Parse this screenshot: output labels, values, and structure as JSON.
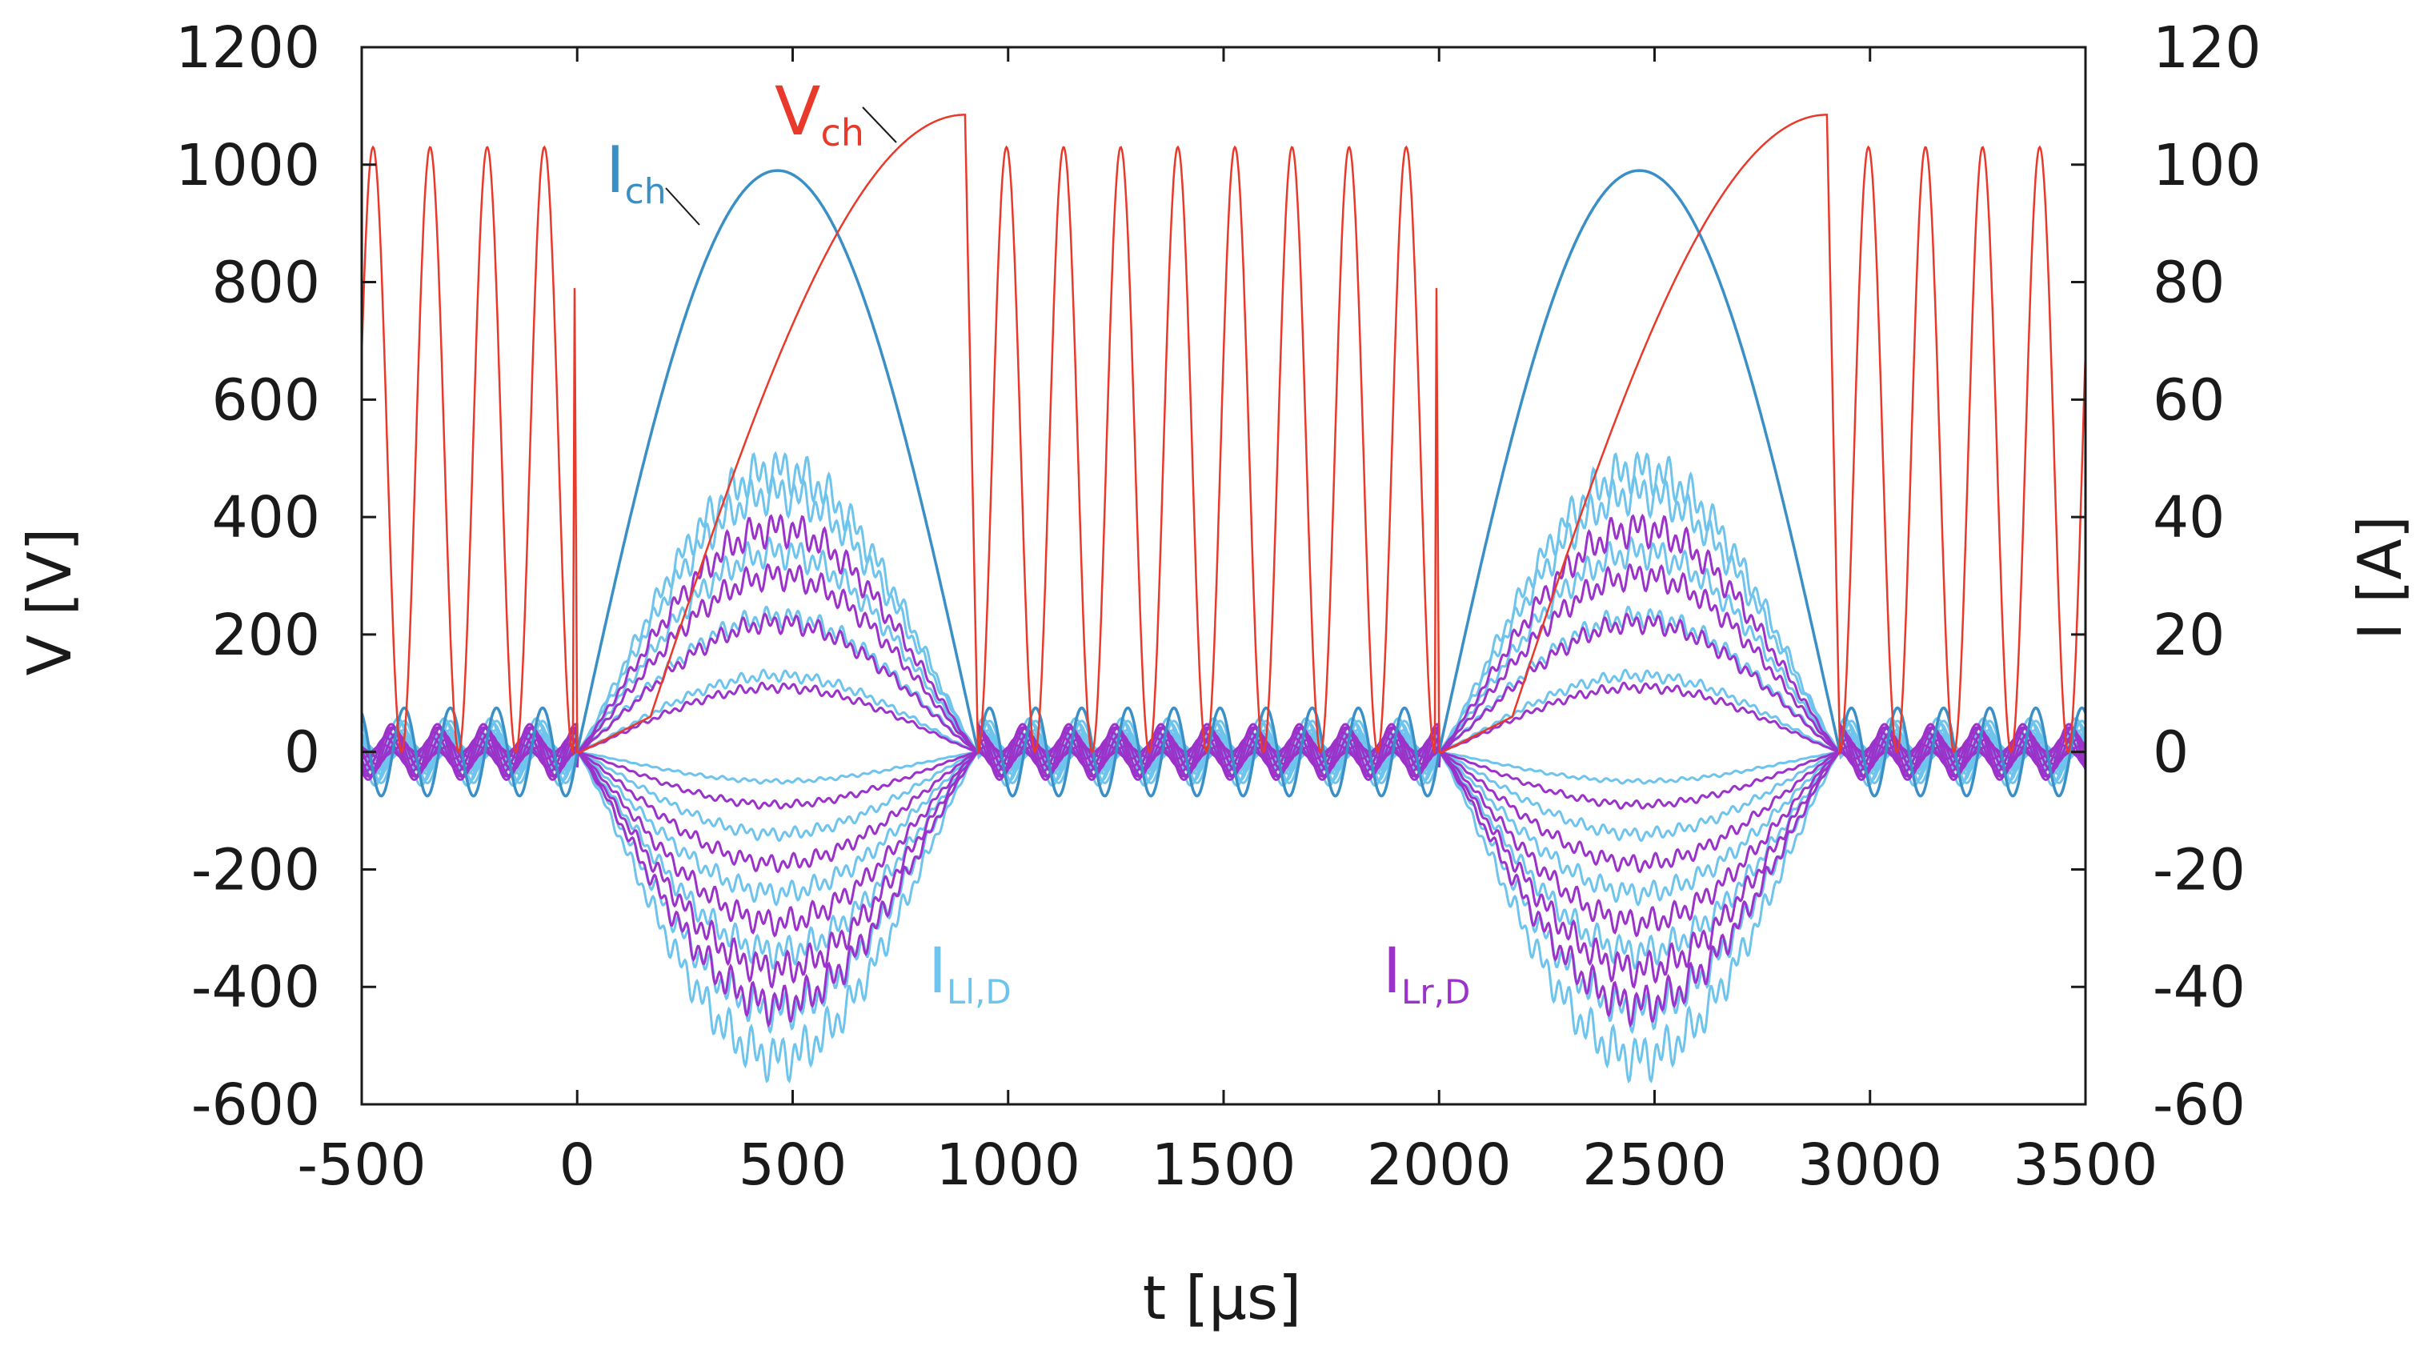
{
  "chart_data": {
    "type": "line",
    "xlabel": "t [µs]",
    "ylabel_left": "V [V]",
    "ylabel_right": "I [A]",
    "xlim": [
      -500,
      3500
    ],
    "ylim_left": [
      -600,
      1200
    ],
    "ylim_right": [
      -60,
      120
    ],
    "x_ticks": [
      -500,
      0,
      500,
      1000,
      1500,
      2000,
      2500,
      3000,
      3500
    ],
    "y_left_ticks": [
      -600,
      -400,
      -200,
      0,
      200,
      400,
      600,
      800,
      1000,
      1200
    ],
    "y_right_ticks": [
      -60,
      -40,
      -20,
      0,
      20,
      40,
      60,
      80,
      100,
      120
    ],
    "grid": false,
    "period_us": 2000,
    "series": [
      {
        "name": "V_ch",
        "label_main": "V",
        "label_sub": "ch",
        "axis": "left",
        "color": "#e8392b",
        "charge_pulse": {
          "start": 170,
          "end": 900,
          "peak": 1085
        },
        "idle_oscillation": {
          "amplitude": 1030,
          "cycles": 8,
          "start": 930,
          "end": 1990
        }
      },
      {
        "name": "I_ch",
        "label_main": "I",
        "label_sub": "ch",
        "axis": "right",
        "color": "#3a8fc6",
        "half_sine": {
          "start": 0,
          "end": 930,
          "peak": 99
        },
        "idle_ripple_amplitude": 7.5
      },
      {
        "name": "I_Ll,D",
        "label_main": "I",
        "label_sub": "Ll,D",
        "axis": "right",
        "color": "#6ec4ec",
        "peak_amplitudes": [
          48,
          44,
          34,
          23,
          13,
          -5,
          -14,
          -24,
          -34,
          -44,
          -52
        ]
      },
      {
        "name": "I_Lr,D",
        "label_main": "I",
        "label_sub": "Lr,D",
        "axis": "right",
        "color": "#9b32c9",
        "peak_amplitudes": [
          38,
          30,
          22,
          11,
          -9,
          -19,
          -29,
          -37,
          -43
        ]
      }
    ]
  }
}
